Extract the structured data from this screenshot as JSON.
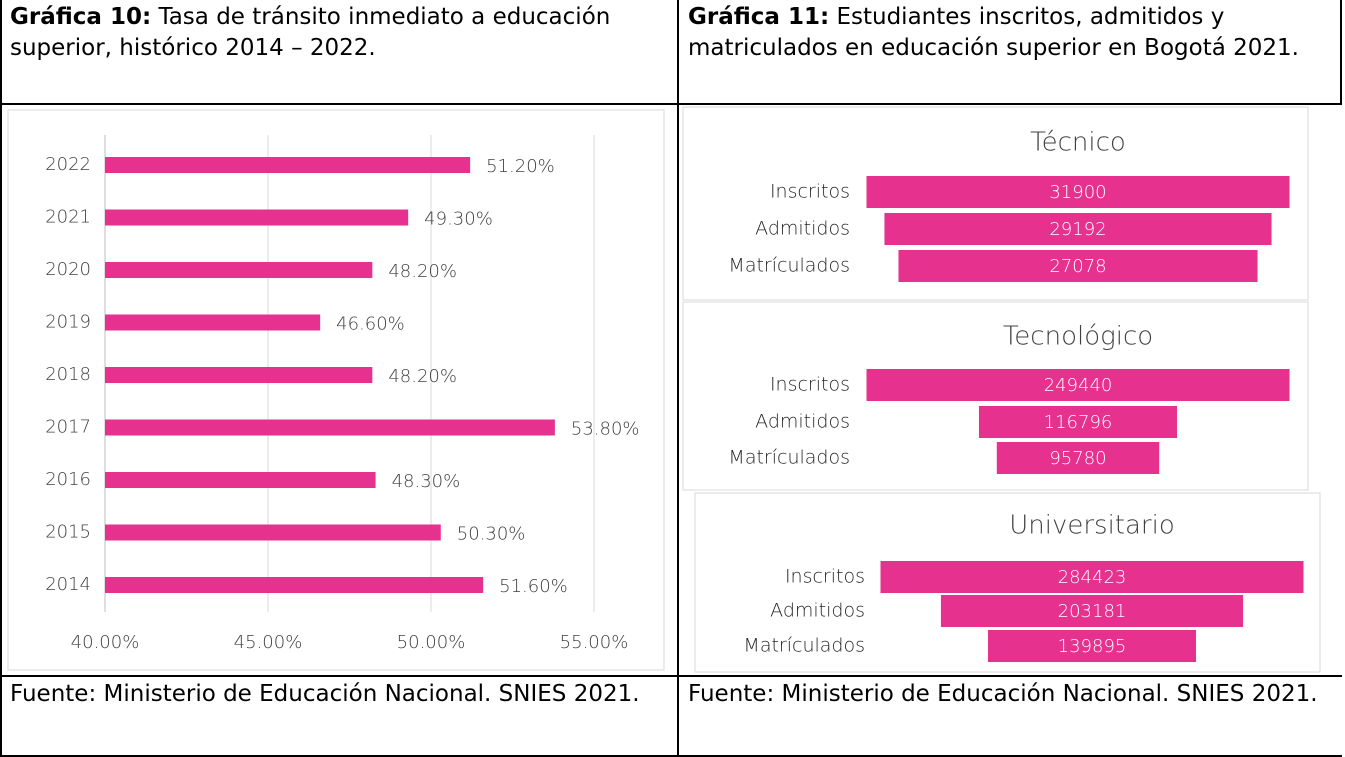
{
  "headers": [
    {
      "bold": "Gráfica 10:",
      "text": "Tasa de tránsito inmediato a educación superior, histórico 2014 – 2022."
    },
    {
      "bold": "Gráfica 11:",
      "text": "Estudiantes inscritos, admitidos y matriculados en educación superior en Bogotá 2021."
    }
  ],
  "chart_data": [
    {
      "type": "bar",
      "orientation": "horizontal",
      "color": "#e6318f",
      "grid": true,
      "categories": [
        "2022",
        "2021",
        "2020",
        "2019",
        "2018",
        "2017",
        "2016",
        "2015",
        "2014"
      ],
      "values": [
        51.2,
        49.3,
        48.2,
        46.6,
        48.2,
        53.8,
        48.3,
        50.3,
        51.6
      ],
      "value_labels": [
        "51.20%",
        "49.30%",
        "48.20%",
        "46.60%",
        "48.20%",
        "53.80%",
        "48.30%",
        "50.30%",
        "51.60%"
      ],
      "xlim": [
        40,
        55
      ],
      "xticks": [
        {
          "value": 40,
          "label": "40.00%"
        },
        {
          "value": 45,
          "label": "45.00%"
        },
        {
          "value": 50,
          "label": "50.00%"
        },
        {
          "value": 55,
          "label": "55.00%"
        }
      ]
    },
    {
      "type": "funnel",
      "color": "#e6318f",
      "panels": [
        {
          "title": "Técnico",
          "categories": [
            "Inscritos",
            "Admitidos",
            "Matrículados"
          ],
          "values": [
            31900,
            29192,
            27078
          ]
        },
        {
          "title": "Tecnológico",
          "categories": [
            "Inscritos",
            "Admitidos",
            "Matrículados"
          ],
          "values": [
            249440,
            116796,
            95780
          ]
        },
        {
          "title": "Universitario",
          "categories": [
            "Inscritos",
            "Admitidos",
            "Matrículados"
          ],
          "values": [
            284423,
            203181,
            139895
          ]
        }
      ]
    }
  ],
  "footers": [
    "Fuente: Ministerio de Educación Nacional. SNIES 2021.",
    "Fuente: Ministerio de Educación Nacional. SNIES 2021."
  ]
}
